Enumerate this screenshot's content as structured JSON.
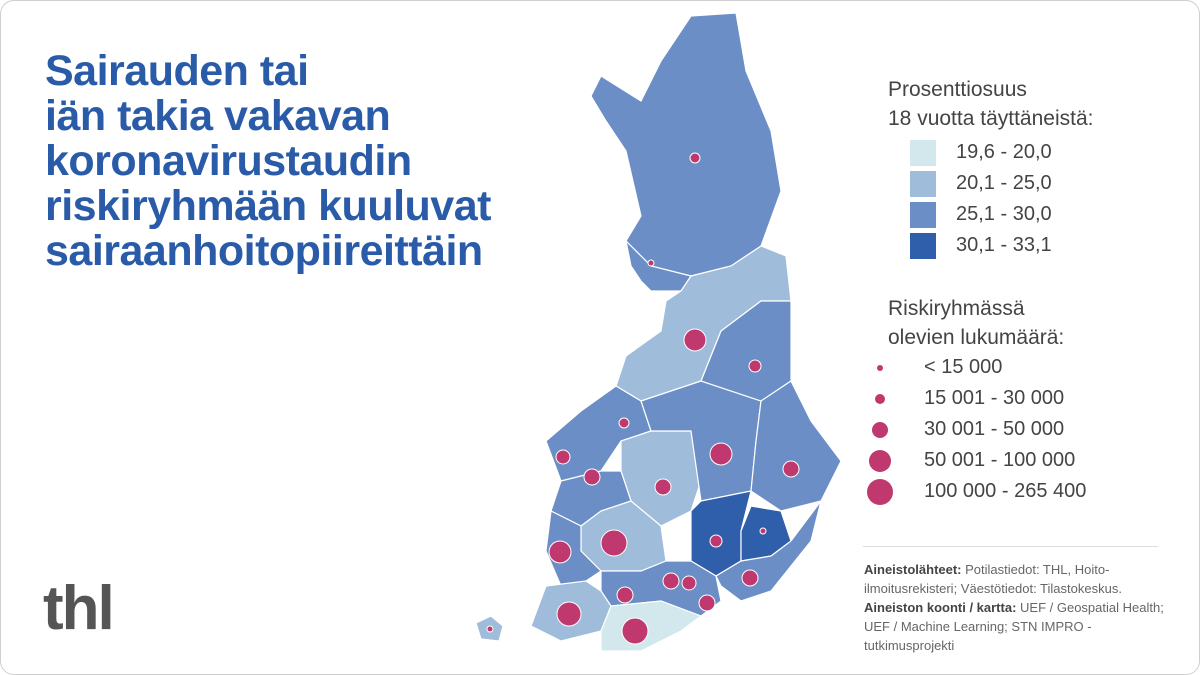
{
  "title_lines": [
    "Sairauden tai",
    "iän takia vakavan",
    "koronavirustaudin",
    "riskiryhmään kuuluvat",
    "sairaanhoitopiireittäin"
  ],
  "logo": "thl",
  "legend_percent": {
    "title_lines": [
      "Prosenttiosuus",
      "18 vuotta täyttäneistä:"
    ],
    "classes": [
      {
        "label": "19,6 - 20,0",
        "color": "#d2e8ec"
      },
      {
        "label": "20,1 - 25,0",
        "color": "#9fbcda"
      },
      {
        "label": "25,1 - 30,0",
        "color": "#6a8ec5"
      },
      {
        "label": "30,1 - 33,1",
        "color": "#2f5eab"
      }
    ]
  },
  "legend_count": {
    "title_lines": [
      "Riskiryhmässä",
      "olevien lukumäärä:"
    ],
    "classes": [
      {
        "label": "< 15 000"
      },
      {
        "label": "15 001 - 30 000"
      },
      {
        "label": "30 001 - 50 000"
      },
      {
        "label": "50 001 - 100 000"
      },
      {
        "label": "100 000 - 265 400"
      }
    ],
    "color": "#c0396e"
  },
  "sources": {
    "label1": "Aineistolähteet:",
    "text1": " Potilastiedot: THL, Hoito-ilmoitusrekisteri; Väestötiedot: Tilastokeskus.",
    "label2": "Aineiston koonti / kartta:",
    "text2": " UEF / Geospatial Health; UEF / Machine Learning; STN IMPRO -tutkimusprojekti"
  },
  "colors": {
    "title": "#2a5ba8",
    "circle": "#c0396e"
  }
}
